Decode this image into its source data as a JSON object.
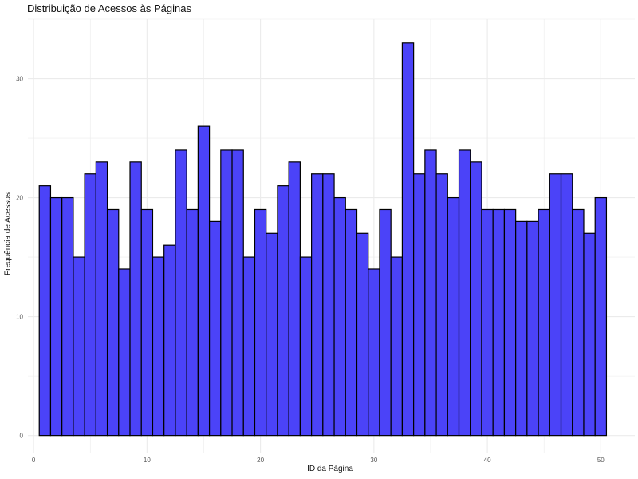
{
  "chart_data": {
    "type": "bar",
    "title": "Distribuição de Acessos às Páginas",
    "xlabel": "ID da Página",
    "ylabel": "Frequência de Acessos",
    "x": [
      1,
      2,
      3,
      4,
      5,
      6,
      7,
      8,
      9,
      10,
      11,
      12,
      13,
      14,
      15,
      16,
      17,
      18,
      19,
      20,
      21,
      22,
      23,
      24,
      25,
      26,
      27,
      28,
      29,
      30,
      31,
      32,
      33,
      34,
      35,
      36,
      37,
      38,
      39,
      40,
      41,
      42,
      43,
      44,
      45,
      46,
      47,
      48,
      49,
      50
    ],
    "values": [
      21,
      20,
      20,
      15,
      22,
      23,
      19,
      14,
      23,
      19,
      15,
      16,
      24,
      19,
      26,
      18,
      24,
      24,
      15,
      19,
      17,
      21,
      23,
      15,
      22,
      22,
      20,
      19,
      17,
      14,
      19,
      15,
      33,
      22,
      24,
      22,
      20,
      24,
      23,
      19,
      19,
      19,
      18,
      18,
      19,
      22,
      22,
      19,
      17,
      20
    ],
    "xticks": [
      0,
      10,
      20,
      30,
      40,
      50
    ],
    "yticks": [
      0,
      10,
      20,
      30
    ],
    "xlim": [
      -0.5,
      53.0
    ],
    "ylim": [
      -1.5,
      35.0
    ],
    "grid": true,
    "bar_fill": "#4b43f8",
    "bar_edge": "#000000",
    "grid_color": "#ebebeb",
    "background": "#ffffff"
  }
}
